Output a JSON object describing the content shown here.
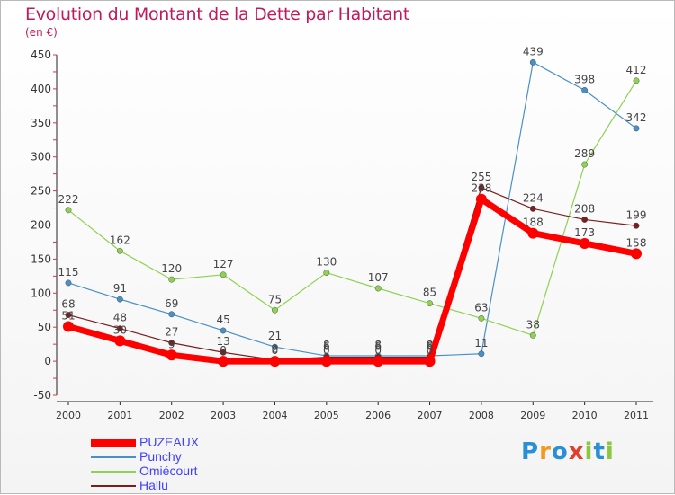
{
  "title": "Evolution du Montant de la Dette par Habitant",
  "unit_label": "(en €)",
  "logo": {
    "letters": [
      "P",
      "r",
      "o",
      "x",
      "i",
      "t",
      "i"
    ],
    "colors": [
      "#2b8fd6",
      "#f29a1c",
      "#2b8fd6",
      "#e33d2c",
      "#8cc63f",
      "#2b8fd6",
      "#8cc63f"
    ]
  },
  "chart_data": {
    "type": "line",
    "title": "Evolution du Montant de la Dette par Habitant",
    "subtitle": "(en €)",
    "xlabel": "",
    "ylabel": "",
    "categories": [
      "2000",
      "2001",
      "2002",
      "2003",
      "2004",
      "2005",
      "2006",
      "2007",
      "2008",
      "2009",
      "2010",
      "2011"
    ],
    "ylim": [
      -50,
      450
    ],
    "yticks": [
      -50,
      0,
      50,
      100,
      150,
      200,
      250,
      300,
      350,
      400,
      450
    ],
    "grid": false,
    "legend_position": "bottom-left",
    "series": [
      {
        "name": "PUZEAUX",
        "color": "#ff0000",
        "values": [
          51,
          30,
          9,
          0,
          0,
          0,
          0,
          0,
          238,
          188,
          173,
          158
        ],
        "labels": [
          "51",
          "30",
          "9",
          "0",
          "0",
          "0",
          "0",
          "0",
          "238",
          "188",
          "173",
          "158"
        ]
      },
      {
        "name": "Punchy",
        "color": "#4a90c8",
        "values": [
          115,
          91,
          69,
          45,
          21,
          8,
          8,
          8,
          11,
          439,
          398,
          342
        ],
        "labels": [
          "115",
          "91",
          "69",
          "45",
          "21",
          "8",
          "8",
          "8",
          "11",
          "439",
          "398",
          "342"
        ]
      },
      {
        "name": "Omiécourt",
        "color": "#8fd152",
        "values": [
          222,
          162,
          120,
          127,
          75,
          130,
          107,
          85,
          63,
          38,
          289,
          412
        ],
        "labels": [
          "222",
          "162",
          "120",
          "127",
          "75",
          "130",
          "107",
          "85",
          "63",
          "38",
          "289",
          "412"
        ]
      },
      {
        "name": "Hallu",
        "color": "#7a1f1f",
        "values": [
          68,
          48,
          27,
          13,
          2,
          6,
          6,
          6,
          255,
          224,
          208,
          199
        ],
        "labels": [
          "68",
          "48",
          "27",
          "13",
          "2",
          "6",
          "6",
          "6",
          "255",
          "224",
          "208",
          "199"
        ]
      }
    ]
  }
}
